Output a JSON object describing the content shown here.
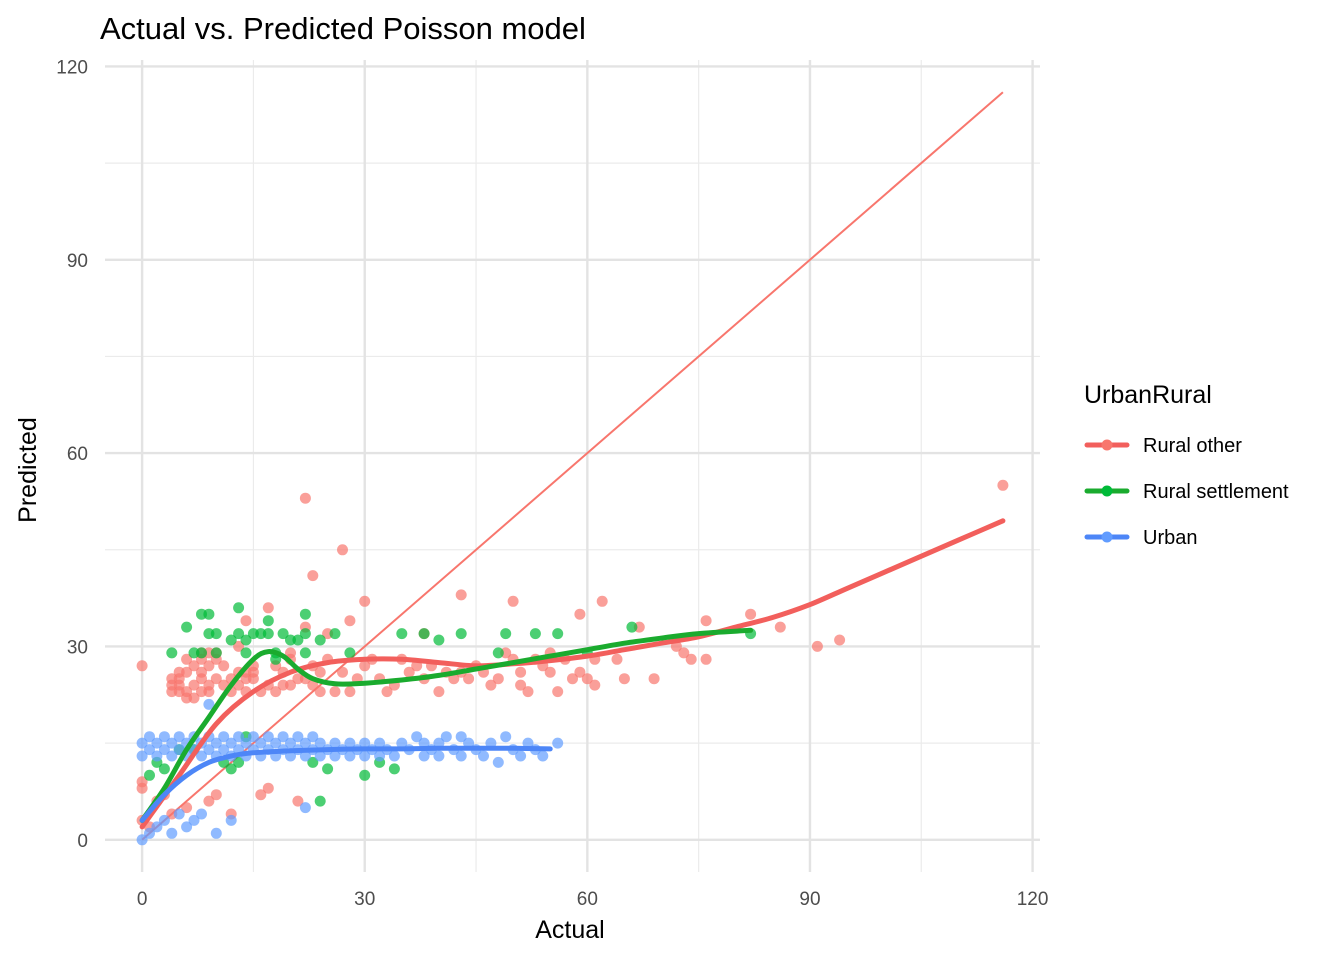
{
  "chart_data": {
    "type": "scatter",
    "title": "Actual vs. Predicted Poisson model",
    "xlabel": "Actual",
    "ylabel": "Predicted",
    "xlim": [
      -5,
      121
    ],
    "ylim": [
      -5,
      121
    ],
    "x_ticks": [
      0,
      30,
      60,
      90,
      120
    ],
    "y_ticks": [
      0,
      30,
      60,
      90,
      120
    ],
    "x_tick_labels": [
      "0",
      "30",
      "60",
      "90",
      "120"
    ],
    "y_tick_labels": [
      "0",
      "30",
      "60",
      "90",
      "120"
    ],
    "grid": true,
    "legend": {
      "title": "UrbanRural",
      "position": "right",
      "entries": [
        "Rural other",
        "Rural settlement",
        "Urban"
      ]
    },
    "reference_line": {
      "x": [
        0,
        116
      ],
      "y": [
        0,
        116
      ],
      "color": "#F8766D"
    },
    "series": [
      {
        "name": "Rural other",
        "color": "#F8766D",
        "line_color": "#F25F5C",
        "points": [
          [
            0,
            27
          ],
          [
            0,
            9
          ],
          [
            0,
            8
          ],
          [
            0,
            3
          ],
          [
            1,
            2
          ],
          [
            2,
            6
          ],
          [
            3,
            7
          ],
          [
            4,
            25
          ],
          [
            4,
            24
          ],
          [
            4,
            23
          ],
          [
            4,
            4
          ],
          [
            5,
            26
          ],
          [
            5,
            24
          ],
          [
            5,
            23
          ],
          [
            5,
            25
          ],
          [
            6,
            28
          ],
          [
            6,
            26
          ],
          [
            6,
            23
          ],
          [
            6,
            22
          ],
          [
            6,
            5
          ],
          [
            7,
            24
          ],
          [
            7,
            27
          ],
          [
            7,
            22
          ],
          [
            8,
            29
          ],
          [
            8,
            26
          ],
          [
            8,
            25
          ],
          [
            8,
            23
          ],
          [
            8,
            28
          ],
          [
            9,
            27
          ],
          [
            9,
            29
          ],
          [
            9,
            24
          ],
          [
            9,
            23
          ],
          [
            9,
            6
          ],
          [
            10,
            28
          ],
          [
            10,
            25
          ],
          [
            10,
            29
          ],
          [
            10,
            7
          ],
          [
            11,
            24
          ],
          [
            11,
            27
          ],
          [
            12,
            23
          ],
          [
            12,
            25
          ],
          [
            12,
            4
          ],
          [
            13,
            24
          ],
          [
            13,
            30
          ],
          [
            13,
            26
          ],
          [
            14,
            34
          ],
          [
            14,
            25
          ],
          [
            14,
            26
          ],
          [
            14,
            23
          ],
          [
            15,
            26
          ],
          [
            15,
            27
          ],
          [
            15,
            25
          ],
          [
            16,
            23
          ],
          [
            16,
            7
          ],
          [
            17,
            24
          ],
          [
            17,
            36
          ],
          [
            17,
            8
          ],
          [
            18,
            27
          ],
          [
            18,
            23
          ],
          [
            19,
            24
          ],
          [
            19,
            26
          ],
          [
            20,
            29
          ],
          [
            20,
            24
          ],
          [
            20,
            28
          ],
          [
            21,
            25
          ],
          [
            21,
            6
          ],
          [
            22,
            53
          ],
          [
            22,
            25
          ],
          [
            22,
            33
          ],
          [
            23,
            41
          ],
          [
            23,
            24
          ],
          [
            23,
            27
          ],
          [
            24,
            26
          ],
          [
            24,
            23
          ],
          [
            25,
            32
          ],
          [
            25,
            28
          ],
          [
            26,
            23
          ],
          [
            27,
            45
          ],
          [
            27,
            26
          ],
          [
            28,
            34
          ],
          [
            28,
            23
          ],
          [
            29,
            25
          ],
          [
            30,
            37
          ],
          [
            30,
            27
          ],
          [
            31,
            28
          ],
          [
            32,
            25
          ],
          [
            33,
            23
          ],
          [
            34,
            24
          ],
          [
            35,
            28
          ],
          [
            36,
            26
          ],
          [
            37,
            27
          ],
          [
            38,
            32
          ],
          [
            38,
            25
          ],
          [
            39,
            27
          ],
          [
            40,
            23
          ],
          [
            41,
            26
          ],
          [
            42,
            25
          ],
          [
            43,
            38
          ],
          [
            43,
            26
          ],
          [
            44,
            25
          ],
          [
            45,
            27
          ],
          [
            46,
            26
          ],
          [
            47,
            24
          ],
          [
            48,
            25
          ],
          [
            49,
            29
          ],
          [
            50,
            37
          ],
          [
            50,
            28
          ],
          [
            51,
            26
          ],
          [
            51,
            24
          ],
          [
            52,
            23
          ],
          [
            53,
            28
          ],
          [
            54,
            27
          ],
          [
            55,
            29
          ],
          [
            55,
            26
          ],
          [
            56,
            23
          ],
          [
            57,
            28
          ],
          [
            58,
            25
          ],
          [
            59,
            35
          ],
          [
            59,
            26
          ],
          [
            60,
            25
          ],
          [
            61,
            24
          ],
          [
            61,
            28
          ],
          [
            62,
            37
          ],
          [
            64,
            28
          ],
          [
            65,
            25
          ],
          [
            67,
            33
          ],
          [
            69,
            25
          ],
          [
            72,
            30
          ],
          [
            73,
            29
          ],
          [
            74,
            28
          ],
          [
            76,
            34
          ],
          [
            76,
            28
          ],
          [
            82,
            35
          ],
          [
            86,
            33
          ],
          [
            91,
            30
          ],
          [
            94,
            31
          ],
          [
            116,
            55
          ]
        ]
      },
      {
        "name": "Rural settlement",
        "color": "#00BA38",
        "line_color": "#1AAB2E",
        "points": [
          [
            1,
            10
          ],
          [
            2,
            12
          ],
          [
            3,
            11
          ],
          [
            4,
            29
          ],
          [
            5,
            14
          ],
          [
            6,
            33
          ],
          [
            7,
            29
          ],
          [
            7,
            14
          ],
          [
            8,
            35
          ],
          [
            8,
            29
          ],
          [
            9,
            32
          ],
          [
            9,
            35
          ],
          [
            10,
            29
          ],
          [
            10,
            32
          ],
          [
            11,
            12
          ],
          [
            12,
            31
          ],
          [
            12,
            11
          ],
          [
            13,
            36
          ],
          [
            13,
            32
          ],
          [
            13,
            12
          ],
          [
            14,
            31
          ],
          [
            14,
            29
          ],
          [
            14,
            16
          ],
          [
            15,
            32
          ],
          [
            16,
            32
          ],
          [
            17,
            32
          ],
          [
            17,
            34
          ],
          [
            18,
            29
          ],
          [
            18,
            28
          ],
          [
            19,
            32
          ],
          [
            20,
            31
          ],
          [
            21,
            31
          ],
          [
            22,
            35
          ],
          [
            22,
            32
          ],
          [
            22,
            29
          ],
          [
            23,
            12
          ],
          [
            24,
            31
          ],
          [
            24,
            6
          ],
          [
            25,
            11
          ],
          [
            26,
            32
          ],
          [
            28,
            29
          ],
          [
            30,
            10
          ],
          [
            32,
            12
          ],
          [
            34,
            11
          ],
          [
            35,
            32
          ],
          [
            38,
            32
          ],
          [
            40,
            31
          ],
          [
            43,
            32
          ],
          [
            48,
            29
          ],
          [
            49,
            32
          ],
          [
            53,
            32
          ],
          [
            56,
            32
          ],
          [
            60,
            29
          ],
          [
            66,
            33
          ],
          [
            82,
            32
          ]
        ]
      },
      {
        "name": "Urban",
        "color": "#619CFF",
        "line_color": "#4D86F7",
        "points": [
          [
            0,
            0
          ],
          [
            0,
            13
          ],
          [
            0,
            15
          ],
          [
            1,
            1
          ],
          [
            1,
            14
          ],
          [
            1,
            16
          ],
          [
            2,
            2
          ],
          [
            2,
            13
          ],
          [
            2,
            15
          ],
          [
            3,
            3
          ],
          [
            3,
            14
          ],
          [
            3,
            16
          ],
          [
            4,
            1
          ],
          [
            4,
            13
          ],
          [
            4,
            15
          ],
          [
            5,
            4
          ],
          [
            5,
            14
          ],
          [
            5,
            16
          ],
          [
            6,
            2
          ],
          [
            6,
            13
          ],
          [
            6,
            15
          ],
          [
            7,
            3
          ],
          [
            7,
            14
          ],
          [
            7,
            16
          ],
          [
            8,
            4
          ],
          [
            8,
            13
          ],
          [
            8,
            15
          ],
          [
            9,
            21
          ],
          [
            9,
            14
          ],
          [
            9,
            16
          ],
          [
            10,
            1
          ],
          [
            10,
            13
          ],
          [
            10,
            15
          ],
          [
            11,
            14
          ],
          [
            11,
            16
          ],
          [
            12,
            3
          ],
          [
            12,
            13
          ],
          [
            12,
            15
          ],
          [
            13,
            14
          ],
          [
            13,
            16
          ],
          [
            14,
            13
          ],
          [
            14,
            15
          ],
          [
            15,
            14
          ],
          [
            15,
            16
          ],
          [
            16,
            13
          ],
          [
            16,
            15
          ],
          [
            17,
            14
          ],
          [
            17,
            16
          ],
          [
            18,
            13
          ],
          [
            18,
            15
          ],
          [
            19,
            14
          ],
          [
            19,
            16
          ],
          [
            20,
            13
          ],
          [
            20,
            15
          ],
          [
            21,
            14
          ],
          [
            21,
            16
          ],
          [
            22,
            5
          ],
          [
            22,
            13
          ],
          [
            22,
            15
          ],
          [
            23,
            14
          ],
          [
            23,
            16
          ],
          [
            24,
            13
          ],
          [
            24,
            15
          ],
          [
            25,
            14
          ],
          [
            26,
            13
          ],
          [
            26,
            15
          ],
          [
            27,
            14
          ],
          [
            28,
            13
          ],
          [
            28,
            15
          ],
          [
            29,
            14
          ],
          [
            30,
            13
          ],
          [
            30,
            15
          ],
          [
            31,
            14
          ],
          [
            32,
            13
          ],
          [
            32,
            15
          ],
          [
            33,
            14
          ],
          [
            34,
            13
          ],
          [
            35,
            15
          ],
          [
            36,
            14
          ],
          [
            37,
            16
          ],
          [
            38,
            13
          ],
          [
            38,
            15
          ],
          [
            39,
            14
          ],
          [
            40,
            13
          ],
          [
            40,
            15
          ],
          [
            41,
            16
          ],
          [
            42,
            14
          ],
          [
            43,
            13
          ],
          [
            43,
            16
          ],
          [
            44,
            15
          ],
          [
            45,
            14
          ],
          [
            46,
            13
          ],
          [
            47,
            15
          ],
          [
            48,
            12
          ],
          [
            49,
            16
          ],
          [
            50,
            14
          ],
          [
            51,
            13
          ],
          [
            52,
            15
          ],
          [
            53,
            14
          ],
          [
            54,
            13
          ],
          [
            56,
            15
          ]
        ]
      }
    ],
    "smooth_curves": [
      {
        "name": "Rural other",
        "x": [
          0,
          5,
          10,
          15,
          20,
          25,
          30,
          35,
          40,
          45,
          50,
          55,
          60,
          65,
          70,
          75,
          80,
          85,
          90,
          95,
          100,
          105,
          110,
          116
        ],
        "y": [
          2,
          10,
          18,
          23,
          26,
          27.5,
          28,
          28,
          27.5,
          27,
          27.3,
          27.8,
          28.5,
          29.5,
          30.5,
          31.5,
          33,
          34.5,
          36.5,
          39,
          41.5,
          44,
          46.5,
          49.5
        ]
      },
      {
        "name": "Rural settlement",
        "x": [
          0,
          3,
          6,
          9,
          12,
          15,
          17,
          19,
          21,
          23,
          26,
          30,
          35,
          40,
          45,
          50,
          55,
          60,
          65,
          70,
          75,
          82
        ],
        "y": [
          3,
          8,
          14,
          19,
          24,
          28,
          29.2,
          28.5,
          26.5,
          25,
          24.2,
          24.3,
          24.8,
          25.5,
          26.5,
          27.5,
          28.5,
          29.5,
          30.5,
          31.3,
          32,
          32.5
        ]
      },
      {
        "name": "Urban",
        "x": [
          0,
          3,
          6,
          9,
          12,
          15,
          20,
          25,
          30,
          35,
          40,
          45,
          50,
          55
        ],
        "y": [
          3,
          7,
          10,
          12,
          13,
          13.5,
          13.8,
          14,
          14.1,
          14.1,
          14.2,
          14.2,
          14.2,
          14.1
        ]
      }
    ]
  }
}
